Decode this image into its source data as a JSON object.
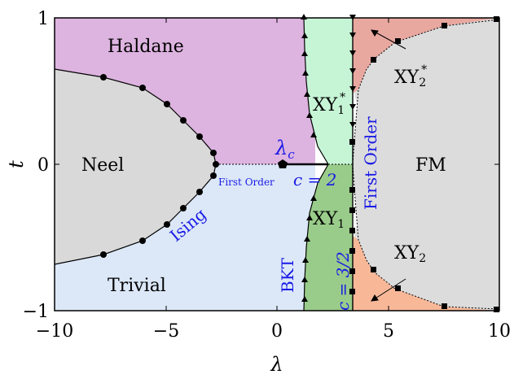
{
  "axes": {
    "xlabel": "λ",
    "ylabel": "t",
    "xticks": [
      "−10",
      "−5",
      "0",
      "5",
      "10"
    ],
    "yticks": [
      "−1",
      "0",
      "1"
    ]
  },
  "phases": {
    "haldane": "Haldane",
    "neel": "Neel",
    "trivial": "Trivial",
    "fm": "FM",
    "xy1_star": "XY",
    "xy1_star_sub": "1",
    "xy1_star_sup": "*",
    "xy1": "XY",
    "xy1_sub": "1",
    "xy2_star": "XY",
    "xy2_star_sub": "2",
    "xy2_star_sup": "*",
    "xy2": "XY",
    "xy2_sub": "2"
  },
  "annotations": {
    "ising": "Ising",
    "first_order_small": "First Order",
    "first_order_big": "First Order",
    "c2": "c = 2",
    "lambda_c": "λ",
    "lambda_c_sub": "c",
    "bkt": "BKT",
    "c32": "c = 3/2"
  },
  "colors": {
    "haldane": "#ddb3e0",
    "neel": "#d9d9d9",
    "trivial": "#dce8f8",
    "xy1_star": "#c6f5d6",
    "xy1": "#99cc8a",
    "fm": "#dcdcdc",
    "xy2_star": "#e8a8a0",
    "xy2": "#f8b898",
    "annotation": "#1a1ae6"
  }
}
